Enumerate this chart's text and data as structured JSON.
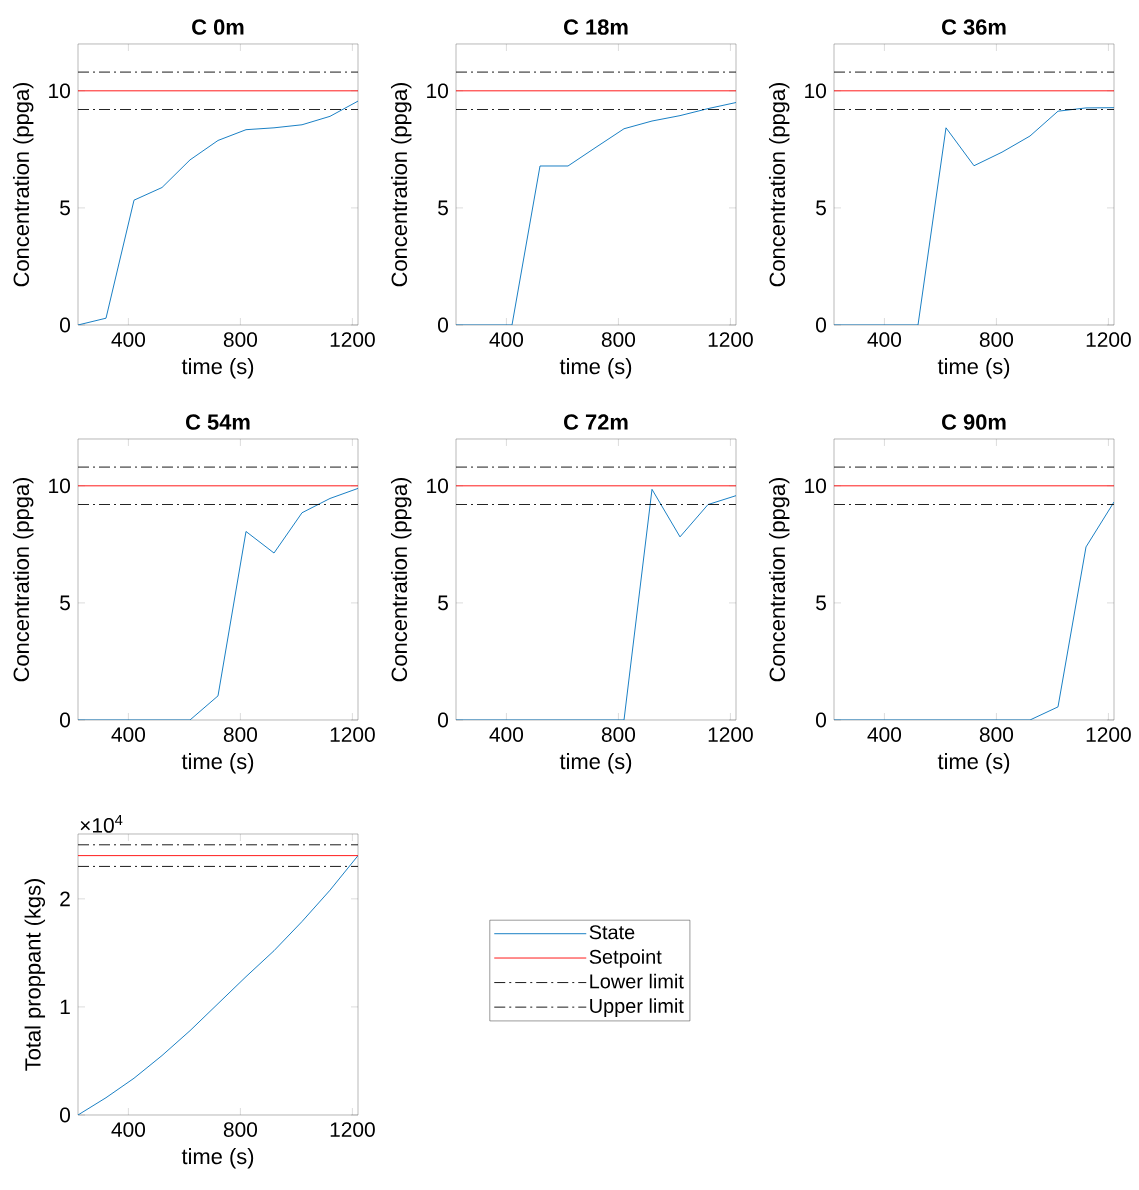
{
  "chart_data": [
    {
      "type": "line",
      "title": "C 0m",
      "xlabel": "time (s)",
      "ylabel": "Concentration (ppga)",
      "x": [
        220,
        320,
        420,
        520,
        620,
        720,
        820,
        920,
        1020,
        1120,
        1220
      ],
      "xlim": [
        220,
        1220
      ],
      "xticks": [
        400,
        800,
        1200
      ],
      "ylim": [
        0,
        12
      ],
      "yticks": [
        0,
        5,
        10
      ],
      "series": [
        {
          "color": "#0072bd",
          "values": [
            0,
            0.29,
            5.33,
            5.87,
            7.05,
            7.88,
            8.34,
            8.42,
            8.55,
            8.91,
            9.56
          ]
        }
      ],
      "ref_lines": [
        {
          "axis": "y",
          "value": 10,
          "color": "#ff0000",
          "line_style": "solid"
        },
        {
          "axis": "y",
          "value": 9.2,
          "color": "#000000",
          "line_style": "dashdot"
        },
        {
          "axis": "y",
          "value": 10.8,
          "color": "#000000",
          "line_style": "dashdot"
        }
      ]
    },
    {
      "type": "line",
      "title": "C 18m",
      "xlabel": "time (s)",
      "ylabel": "Concentration (ppga)",
      "x": [
        220,
        320,
        420,
        520,
        620,
        720,
        820,
        920,
        1020,
        1120,
        1220
      ],
      "xlim": [
        220,
        1220
      ],
      "xticks": [
        400,
        800,
        1200
      ],
      "ylim": [
        0,
        12
      ],
      "yticks": [
        0,
        5,
        10
      ],
      "series": [
        {
          "color": "#0072bd",
          "values": [
            0,
            0,
            0,
            6.79,
            6.79,
            7.59,
            8.38,
            8.71,
            8.94,
            9.24,
            9.5
          ]
        }
      ],
      "ref_lines": [
        {
          "axis": "y",
          "value": 10,
          "color": "#ff0000",
          "line_style": "solid"
        },
        {
          "axis": "y",
          "value": 9.2,
          "color": "#000000",
          "line_style": "dashdot"
        },
        {
          "axis": "y",
          "value": 10.8,
          "color": "#000000",
          "line_style": "dashdot"
        }
      ]
    },
    {
      "type": "line",
      "title": "C 36m",
      "xlabel": "time (s)",
      "ylabel": "Concentration (ppga)",
      "x": [
        220,
        320,
        420,
        520,
        620,
        720,
        820,
        920,
        1020,
        1120,
        1220
      ],
      "xlim": [
        220,
        1220
      ],
      "xticks": [
        400,
        800,
        1200
      ],
      "ylim": [
        0,
        12
      ],
      "yticks": [
        0,
        5,
        10
      ],
      "series": [
        {
          "color": "#0072bd",
          "values": [
            0,
            0,
            0,
            0,
            8.42,
            6.8,
            7.38,
            8.07,
            9.13,
            9.27,
            9.28
          ]
        }
      ],
      "ref_lines": [
        {
          "axis": "y",
          "value": 10,
          "color": "#ff0000",
          "line_style": "solid"
        },
        {
          "axis": "y",
          "value": 9.2,
          "color": "#000000",
          "line_style": "dashdot"
        },
        {
          "axis": "y",
          "value": 10.8,
          "color": "#000000",
          "line_style": "dashdot"
        }
      ]
    },
    {
      "type": "line",
      "title": "C 54m",
      "xlabel": "time (s)",
      "ylabel": "Concentration (ppga)",
      "x": [
        220,
        320,
        420,
        520,
        620,
        720,
        820,
        920,
        1020,
        1120,
        1220
      ],
      "xlim": [
        220,
        1220
      ],
      "xticks": [
        400,
        800,
        1200
      ],
      "ylim": [
        0,
        12
      ],
      "yticks": [
        0,
        5,
        10
      ],
      "series": [
        {
          "color": "#0072bd",
          "values": [
            0,
            0,
            0,
            0,
            0,
            1.03,
            8.05,
            7.13,
            8.85,
            9.46,
            9.89
          ]
        }
      ],
      "ref_lines": [
        {
          "axis": "y",
          "value": 10,
          "color": "#ff0000",
          "line_style": "solid"
        },
        {
          "axis": "y",
          "value": 9.2,
          "color": "#000000",
          "line_style": "dashdot"
        },
        {
          "axis": "y",
          "value": 10.8,
          "color": "#000000",
          "line_style": "dashdot"
        }
      ]
    },
    {
      "type": "line",
      "title": "C 72m",
      "xlabel": "time (s)",
      "ylabel": "Concentration (ppga)",
      "x": [
        220,
        320,
        420,
        520,
        620,
        720,
        820,
        920,
        1020,
        1120,
        1220
      ],
      "xlim": [
        220,
        1220
      ],
      "xticks": [
        400,
        800,
        1200
      ],
      "ylim": [
        0,
        12
      ],
      "yticks": [
        0,
        5,
        10
      ],
      "series": [
        {
          "color": "#0072bd",
          "values": [
            0,
            0,
            0,
            0,
            0,
            0,
            0,
            9.85,
            7.82,
            9.2,
            9.58
          ]
        }
      ],
      "ref_lines": [
        {
          "axis": "y",
          "value": 10,
          "color": "#ff0000",
          "line_style": "solid"
        },
        {
          "axis": "y",
          "value": 9.2,
          "color": "#000000",
          "line_style": "dashdot"
        },
        {
          "axis": "y",
          "value": 10.8,
          "color": "#000000",
          "line_style": "dashdot"
        }
      ]
    },
    {
      "type": "line",
      "title": "C 90m",
      "xlabel": "time (s)",
      "ylabel": "Concentration (ppga)",
      "x": [
        220,
        320,
        420,
        520,
        620,
        720,
        820,
        920,
        1020,
        1120,
        1220
      ],
      "xlim": [
        220,
        1220
      ],
      "xticks": [
        400,
        800,
        1200
      ],
      "ylim": [
        0,
        12
      ],
      "yticks": [
        0,
        5,
        10
      ],
      "series": [
        {
          "color": "#0072bd",
          "values": [
            0,
            0,
            0,
            0,
            0,
            0,
            0,
            0,
            0.56,
            7.39,
            9.31
          ]
        }
      ],
      "ref_lines": [
        {
          "axis": "y",
          "value": 10,
          "color": "#ff0000",
          "line_style": "solid"
        },
        {
          "axis": "y",
          "value": 9.2,
          "color": "#000000",
          "line_style": "dashdot"
        },
        {
          "axis": "y",
          "value": 10.8,
          "color": "#000000",
          "line_style": "dashdot"
        }
      ]
    },
    {
      "type": "line",
      "xlabel": "time (s)",
      "ylabel": "Total proppant (kgs)",
      "annotations": [
        "×10$^{4}$"
      ],
      "x": [
        220,
        320,
        420,
        520,
        620,
        720,
        820,
        920,
        1020,
        1120,
        1220
      ],
      "xlim": [
        220,
        1220
      ],
      "xticks": [
        400,
        800,
        1200
      ],
      "ylim": [
        0,
        2.6
      ],
      "yticks": [
        0,
        1,
        2
      ],
      "legend": "right",
      "series": [
        {
          "name": "State",
          "color": "#0072bd",
          "values": [
            0,
            0.16,
            0.34,
            0.55,
            0.78,
            1.03,
            1.28,
            1.52,
            1.79,
            2.08,
            2.4
          ]
        }
      ],
      "ref_lines": [
        {
          "axis": "y",
          "value": 2.4,
          "label": "Setpoint",
          "color": "#ff0000",
          "line_style": "solid"
        },
        {
          "axis": "y",
          "value": 2.3,
          "label": "Lower limit",
          "color": "#000000",
          "line_style": "dashdot"
        },
        {
          "axis": "y",
          "value": 2.5,
          "label": "Upper limit",
          "color": "#000000",
          "line_style": "dashdot"
        }
      ]
    }
  ]
}
